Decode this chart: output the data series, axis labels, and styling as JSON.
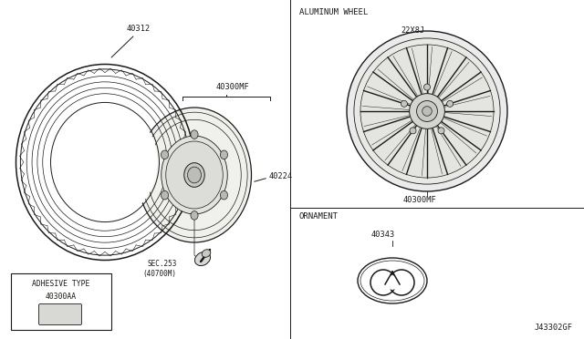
{
  "bg_color": "#ffffff",
  "line_color": "#1a1a1a",
  "labels": {
    "tire_part": "40312",
    "wheel_assembly": "40300MF",
    "hub_cap_nut": "40224",
    "valve_stem_1": "SEC.253",
    "valve_stem_2": "(40700M)",
    "adhesive_box": "ADHESIVE TYPE",
    "adhesive_part": "40300AA",
    "aluminum_wheel_header": "ALUMINUM WHEEL",
    "wheel_size": "22X8J",
    "wheel_part": "40300MF",
    "ornament_header": "ORNAMENT",
    "ornament_part": "40343",
    "diagram_code": "J43302GF"
  },
  "font_size_tiny": 5.5,
  "font_size_small": 6.2,
  "font_size_medium": 7.0,
  "font_family": "monospace"
}
